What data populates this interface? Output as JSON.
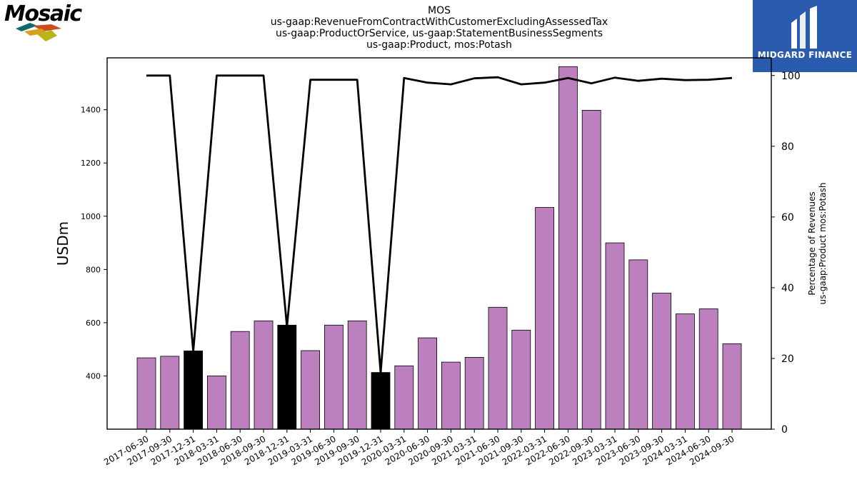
{
  "header": {
    "title_lines": [
      "MOS",
      "us-gaap:RevenueFromContractWithCustomerExcludingAssessedTax",
      "us-gaap:ProductOrService, us-gaap:StatementBusinessSegments",
      "us-gaap:Product, mos:Potash"
    ]
  },
  "logos": {
    "left_word": "Mosaic",
    "right_brand": "MIDGARD FINANCE"
  },
  "colors": {
    "bar": "#bb80bd",
    "bar_highlight": "#000000",
    "line": "#000000",
    "logo_right_bg": "#2b5bae"
  },
  "chart_data": {
    "type": "bar",
    "categories": [
      "2017-06-30",
      "2017-09-30",
      "2017-12-31",
      "2018-03-31",
      "2018-06-30",
      "2018-09-30",
      "2018-12-31",
      "2019-03-31",
      "2019-06-30",
      "2019-09-30",
      "2019-12-31",
      "2020-03-31",
      "2020-06-30",
      "2020-09-30",
      "2021-03-31",
      "2021-06-30",
      "2021-09-30",
      "2022-03-31",
      "2022-06-30",
      "2022-09-30",
      "2023-03-31",
      "2023-06-30",
      "2023-09-30",
      "2024-03-31",
      "2024-06-30",
      "2024-09-30"
    ],
    "series": [
      {
        "type": "bar",
        "axis": "left",
        "values": [
          468,
          474,
          494,
          400,
          567,
          607,
          591,
          495,
          591,
          607,
          413,
          438,
          543,
          452,
          470,
          658,
          572,
          1033,
          1562,
          1398,
          900,
          836,
          711,
          633,
          652,
          521
        ],
        "highlight": [
          false,
          false,
          true,
          false,
          false,
          false,
          true,
          false,
          false,
          false,
          true,
          false,
          false,
          false,
          false,
          false,
          false,
          false,
          false,
          false,
          false,
          false,
          false,
          false,
          false,
          false
        ]
      },
      {
        "type": "line",
        "axis": "right",
        "values": [
          100,
          100,
          22,
          100,
          100,
          100,
          29,
          98.8,
          98.8,
          98.8,
          16,
          99.3,
          98,
          97.5,
          99.2,
          99.5,
          97.5,
          98,
          99.3,
          97.8,
          99.4,
          98.5,
          99.1,
          98.7,
          98.8,
          99.3
        ]
      }
    ],
    "ylabel": "USDm",
    "ylim": [
      200,
      1595
    ],
    "yticks": [
      400,
      600,
      800,
      1000,
      1200,
      1400
    ],
    "y2label_lines": [
      "Percentage of Revenues",
      "us-gaap:Product mos:Potash"
    ],
    "y2lim": [
      0,
      105
    ],
    "y2ticks": [
      0,
      20,
      40,
      60,
      80,
      100
    ],
    "grid": false,
    "legend": "none"
  }
}
